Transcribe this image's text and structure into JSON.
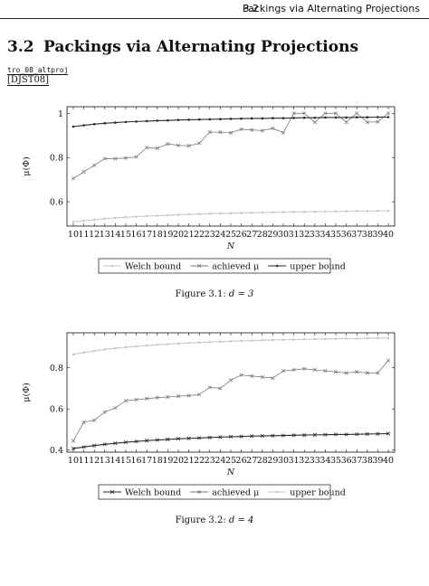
{
  "running_head": {
    "section_number": "3.2",
    "section_title": "Packings via Alternating Projections"
  },
  "section": {
    "number": "3.2",
    "title": "Packings via Alternating Projections"
  },
  "ref_label": "tro_08_altproj",
  "citation": "[DJST08]",
  "figures": [
    {
      "caption_prefix": "Figure 3.1:",
      "caption_math": "d = 3"
    },
    {
      "caption_prefix": "Figure 3.2:",
      "caption_math": "d = 4"
    }
  ],
  "chart_data": [
    {
      "type": "line",
      "title": "",
      "xlabel": "N",
      "ylabel": "μ(Φ)",
      "x": [
        10,
        11,
        12,
        13,
        14,
        15,
        16,
        17,
        18,
        19,
        20,
        21,
        22,
        23,
        24,
        25,
        26,
        27,
        28,
        29,
        30,
        31,
        32,
        33,
        34,
        35,
        36,
        37,
        38,
        39,
        40
      ],
      "xtick_labels": [
        "10",
        "11",
        "12",
        "13",
        "14",
        "15",
        "16",
        "17",
        "18",
        "19",
        "20",
        "21",
        "22",
        "23",
        "24",
        "25",
        "26",
        "27",
        "28",
        "29",
        "30",
        "31",
        "32",
        "33",
        "34",
        "35",
        "36",
        "37",
        "38",
        "39",
        "40"
      ],
      "ylim": [
        0.49,
        1.03
      ],
      "yticks": [
        0.6,
        0.8,
        1
      ],
      "ytick_labels": [
        "0.6",
        "0.8",
        "1"
      ],
      "grid": false,
      "legend_position": "bottom",
      "series": [
        {
          "name": "Welch bound",
          "color": "#c8c8c8",
          "marker": "dot",
          "values": [
            0.509,
            0.514,
            0.519,
            0.523,
            0.527,
            0.53,
            0.533,
            0.535,
            0.537,
            0.539,
            0.541,
            0.543,
            0.544,
            0.546,
            0.547,
            0.548,
            0.549,
            0.55,
            0.551,
            0.552,
            0.553,
            0.554,
            0.554,
            0.555,
            0.556,
            0.556,
            0.557,
            0.558,
            0.558,
            0.559,
            0.559
          ]
        },
        {
          "name": "achieved μ",
          "color": "#7a7a7a",
          "marker": "cross",
          "values": [
            0.705,
            0.735,
            0.765,
            0.795,
            0.795,
            0.798,
            0.803,
            0.845,
            0.842,
            0.862,
            0.855,
            0.853,
            0.865,
            0.915,
            0.915,
            0.912,
            0.928,
            0.925,
            0.922,
            0.932,
            0.912,
            1.0,
            1.0,
            0.96,
            1.0,
            1.0,
            0.96,
            1.0,
            0.96,
            0.962,
            1.0
          ]
        },
        {
          "name": "upper bound",
          "color": "#2a2a2a",
          "marker": "dot",
          "values": [
            0.94,
            0.946,
            0.951,
            0.955,
            0.958,
            0.961,
            0.963,
            0.965,
            0.967,
            0.968,
            0.97,
            0.971,
            0.972,
            0.973,
            0.974,
            0.975,
            0.976,
            0.977,
            0.977,
            0.978,
            0.978,
            0.979,
            0.98,
            0.98,
            0.981,
            0.981,
            0.981,
            0.982,
            0.982,
            0.983,
            0.983
          ]
        }
      ]
    },
    {
      "type": "line",
      "title": "",
      "xlabel": "N",
      "ylabel": "μ(Φ)",
      "x": [
        10,
        11,
        12,
        13,
        14,
        15,
        16,
        17,
        18,
        19,
        20,
        21,
        22,
        23,
        24,
        25,
        26,
        27,
        28,
        29,
        30,
        31,
        32,
        33,
        34,
        35,
        36,
        37,
        38,
        39,
        40
      ],
      "xtick_labels": [
        "10",
        "11",
        "12",
        "13",
        "14",
        "15",
        "16",
        "17",
        "18",
        "19",
        "20",
        "21",
        "22",
        "23",
        "24",
        "25",
        "26",
        "27",
        "28",
        "29",
        "30",
        "31",
        "32",
        "33",
        "34",
        "35",
        "36",
        "37",
        "38",
        "39",
        "40"
      ],
      "ylim": [
        0.39,
        0.97
      ],
      "yticks": [
        0.4,
        0.6,
        0.8
      ],
      "ytick_labels": [
        "0.4",
        "0.6",
        "0.8"
      ],
      "grid": false,
      "legend_position": "bottom",
      "series": [
        {
          "name": "Welch bound",
          "color": "#2a2a2a",
          "marker": "cross",
          "values": [
            0.408,
            0.415,
            0.422,
            0.428,
            0.433,
            0.438,
            0.442,
            0.446,
            0.449,
            0.452,
            0.455,
            0.457,
            0.459,
            0.461,
            0.463,
            0.465,
            0.466,
            0.468,
            0.469,
            0.47,
            0.471,
            0.472,
            0.473,
            0.474,
            0.475,
            0.476,
            0.476,
            0.477,
            0.478,
            0.479,
            0.48
          ]
        },
        {
          "name": "achieved μ",
          "color": "#7a7a7a",
          "marker": "cross",
          "values": [
            0.445,
            0.535,
            0.545,
            0.585,
            0.605,
            0.64,
            0.645,
            0.65,
            0.655,
            0.658,
            0.662,
            0.665,
            0.67,
            0.705,
            0.7,
            0.74,
            0.765,
            0.76,
            0.755,
            0.75,
            0.785,
            0.79,
            0.795,
            0.79,
            0.785,
            0.78,
            0.775,
            0.78,
            0.775,
            0.775,
            0.835
          ]
        },
        {
          "name": "upper bound",
          "color": "#c8c8c8",
          "marker": "dot",
          "values": [
            0.865,
            0.874,
            0.882,
            0.889,
            0.895,
            0.9,
            0.904,
            0.908,
            0.912,
            0.915,
            0.918,
            0.921,
            0.923,
            0.925,
            0.927,
            0.929,
            0.931,
            0.932,
            0.934,
            0.935,
            0.936,
            0.937,
            0.938,
            0.939,
            0.94,
            0.941,
            0.942,
            0.942,
            0.943,
            0.944,
            0.944
          ]
        }
      ]
    }
  ]
}
